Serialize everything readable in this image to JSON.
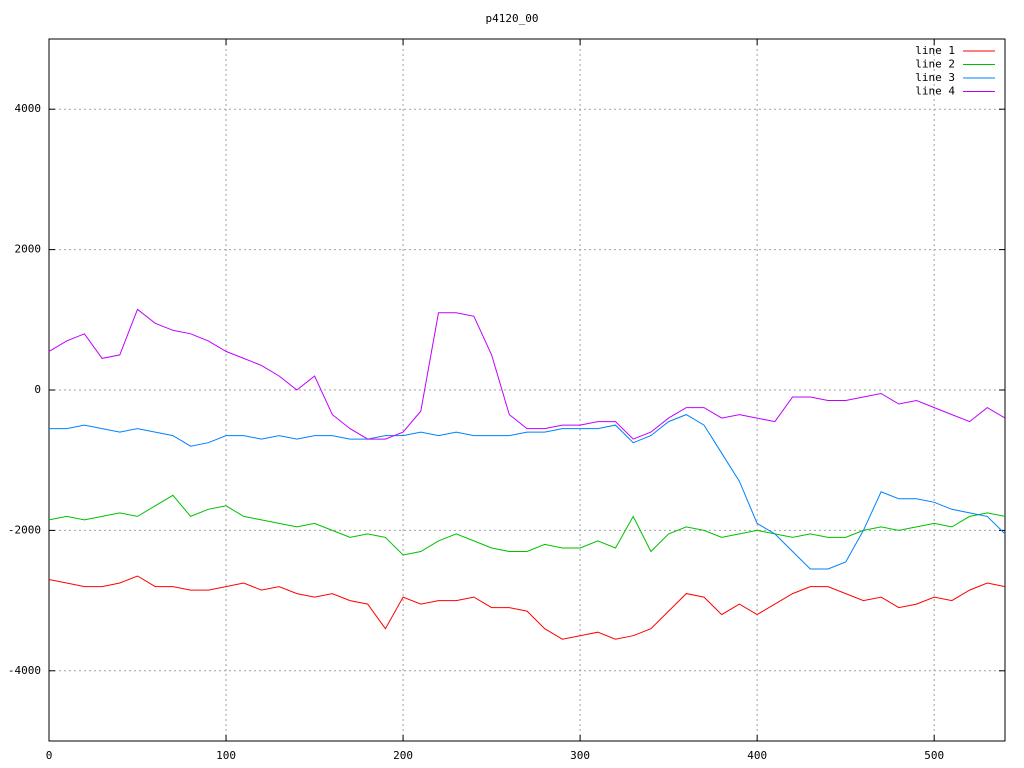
{
  "chart_data": {
    "type": "line",
    "title": "p4120_00",
    "x": [
      0,
      10,
      20,
      30,
      40,
      50,
      60,
      70,
      80,
      90,
      100,
      110,
      120,
      130,
      140,
      150,
      160,
      170,
      180,
      190,
      200,
      210,
      220,
      230,
      240,
      250,
      260,
      270,
      280,
      290,
      300,
      310,
      320,
      330,
      340,
      350,
      360,
      370,
      380,
      390,
      400,
      410,
      420,
      430,
      440,
      450,
      460,
      470,
      480,
      490,
      500,
      510,
      520,
      530,
      540
    ],
    "series": [
      {
        "name": "line 1",
        "color": "#ff0000",
        "values": [
          -2700,
          -2750,
          -2800,
          -2800,
          -2750,
          -2650,
          -2800,
          -2800,
          -2850,
          -2850,
          -2800,
          -2750,
          -2850,
          -2800,
          -2900,
          -2950,
          -2900,
          -3000,
          -3050,
          -3400,
          -2950,
          -3050,
          -3000,
          -3000,
          -2950,
          -3100,
          -3100,
          -3150,
          -3400,
          -3550,
          -3500,
          -3450,
          -3550,
          -3500,
          -3400,
          -3150,
          -2900,
          -2950,
          -3200,
          -3050,
          -3200,
          -3050,
          -2900,
          -2800,
          -2800,
          -2900,
          -3000,
          -2950,
          -3100,
          -3050,
          -2950,
          -3000,
          -2850,
          -2750,
          -2800
        ]
      },
      {
        "name": "line 2",
        "color": "#00c000",
        "values": [
          -1850,
          -1800,
          -1850,
          -1800,
          -1750,
          -1800,
          -1650,
          -1500,
          -1800,
          -1700,
          -1650,
          -1800,
          -1850,
          -1900,
          -1950,
          -1900,
          -2000,
          -2100,
          -2050,
          -2100,
          -2350,
          -2300,
          -2150,
          -2050,
          -2150,
          -2250,
          -2300,
          -2300,
          -2200,
          -2250,
          -2250,
          -2150,
          -2250,
          -1800,
          -2300,
          -2050,
          -1950,
          -2000,
          -2100,
          -2050,
          -2000,
          -2050,
          -2100,
          -2050,
          -2100,
          -2100,
          -2000,
          -1950,
          -2000,
          -1950,
          -1900,
          -1950,
          -1800,
          -1750,
          -1800
        ]
      },
      {
        "name": "line 3",
        "color": "#0080ff",
        "values": [
          -550,
          -550,
          -500,
          -550,
          -600,
          -550,
          -600,
          -650,
          -800,
          -750,
          -650,
          -650,
          -700,
          -650,
          -700,
          -650,
          -650,
          -700,
          -700,
          -650,
          -650,
          -600,
          -650,
          -600,
          -650,
          -650,
          -650,
          -600,
          -600,
          -550,
          -550,
          -550,
          -500,
          -750,
          -650,
          -450,
          -350,
          -500,
          -900,
          -1300,
          -1900,
          -2050,
          -2300,
          -2550,
          -2550,
          -2450,
          -2000,
          -1450,
          -1550,
          -1550,
          -1600,
          -1700,
          -1750,
          -1800,
          -2050
        ]
      },
      {
        "name": "line 4",
        "color": "#c000ff",
        "values": [
          550,
          700,
          800,
          450,
          500,
          1150,
          950,
          850,
          800,
          700,
          550,
          450,
          350,
          200,
          0,
          200,
          -350,
          -550,
          -700,
          -700,
          -600,
          -300,
          1100,
          1100,
          1050,
          500,
          -350,
          -550,
          -550,
          -500,
          -500,
          -450,
          -450,
          -700,
          -600,
          -400,
          -250,
          -250,
          -400,
          -350,
          -400,
          -450,
          -100,
          -100,
          -150,
          -150,
          -100,
          -50,
          -200,
          -150,
          -250,
          -350,
          -450,
          -250,
          -400
        ]
      }
    ],
    "xlim": [
      0,
      540
    ],
    "ylim": [
      -5000,
      5000
    ],
    "xticks": [
      0,
      100,
      200,
      300,
      400,
      500
    ],
    "yticks": [
      -4000,
      -2000,
      0,
      2000,
      4000
    ],
    "grid": true,
    "legend": "top-right"
  }
}
